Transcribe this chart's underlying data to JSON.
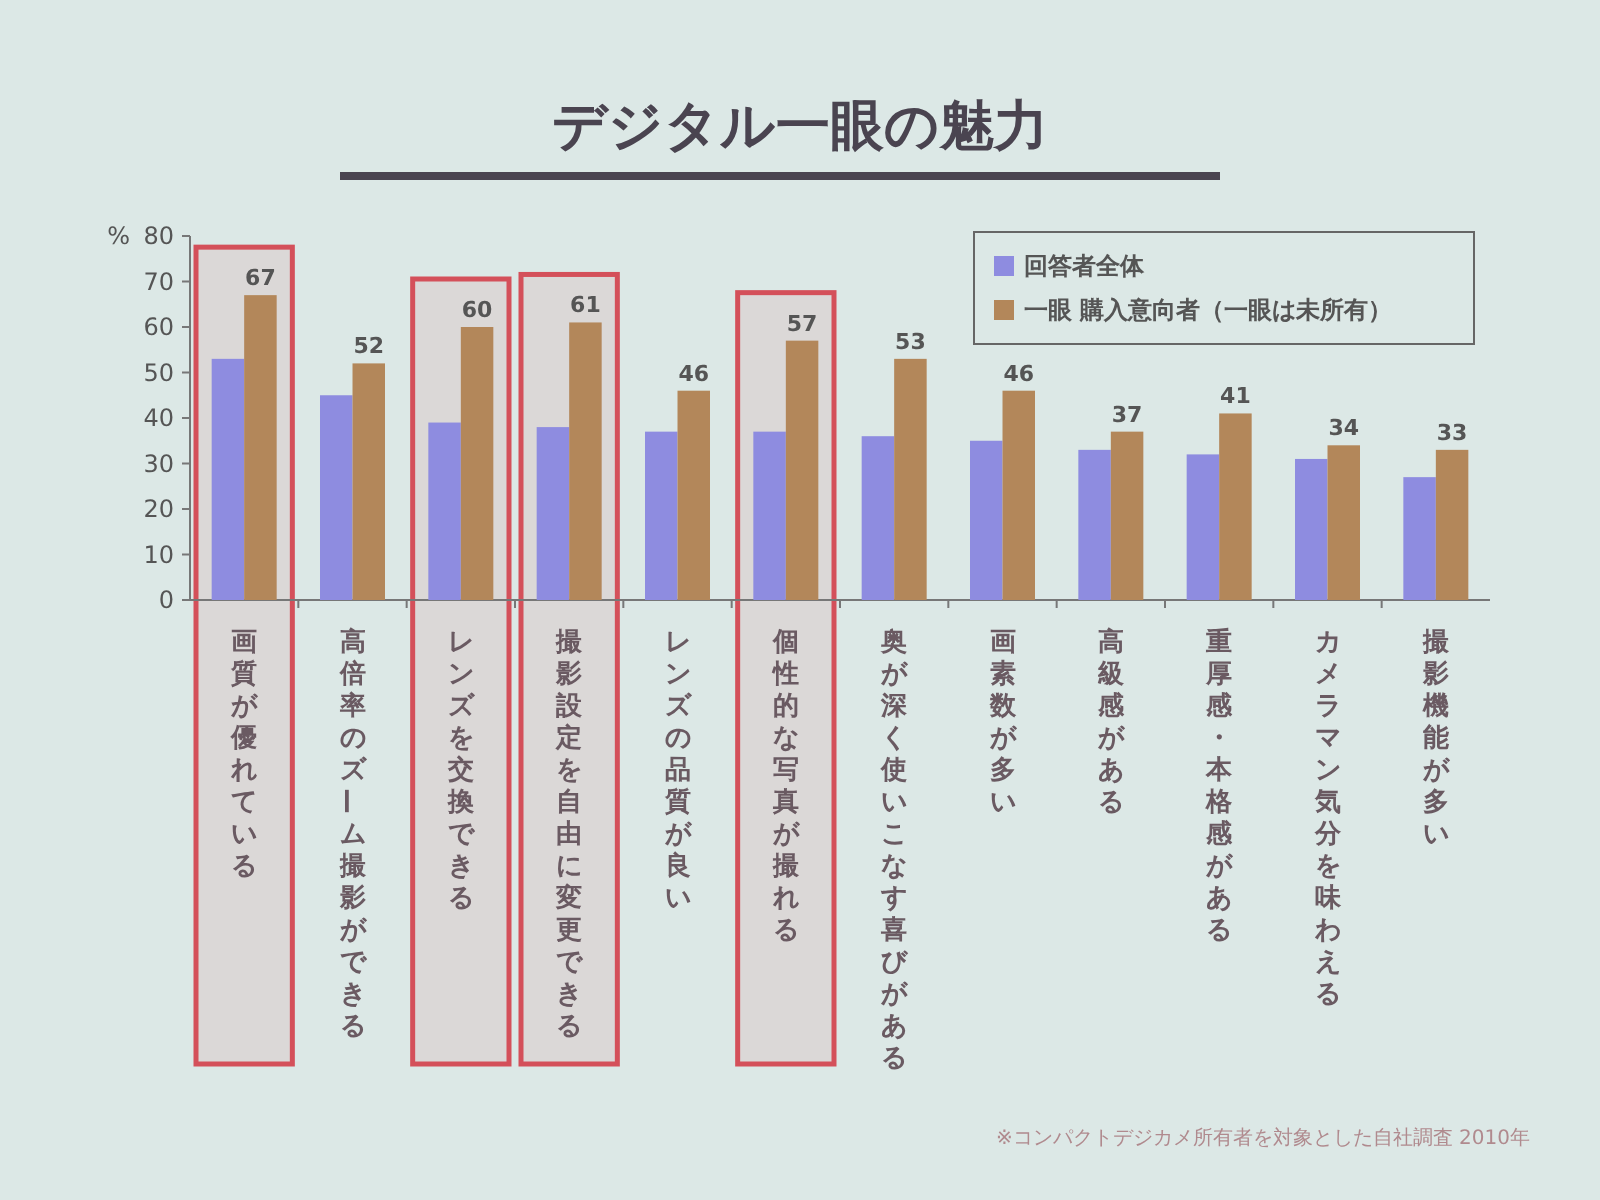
{
  "chart_data": {
    "type": "bar",
    "title": "デジタル一眼の魅力",
    "ylabel": "%",
    "categories": [
      "画質が優れている",
      "高倍率のズーム撮影ができる",
      "レンズを交換できる",
      "撮影設定を自由に変更できる",
      "レンズの品質が良い",
      "個性的な写真が撮れる",
      "奥が深く使いこなす喜びがある",
      "画素数が多い",
      "高級感がある",
      "重厚感・本格感がある",
      "カメラマン気分を味わえる",
      "撮影機能が多い"
    ],
    "series": [
      {
        "name": "回答者全体",
        "color": "#8e8ce0",
        "values": [
          53,
          45,
          39,
          38,
          37,
          37,
          36,
          35,
          33,
          32,
          31,
          27
        ]
      },
      {
        "name": "一眼 購入意向者（一眼は未所有）",
        "color": "#b3875a",
        "values": [
          67,
          52,
          60,
          61,
          46,
          57,
          53,
          46,
          37,
          41,
          34,
          33
        ],
        "value_labels": [
          "67",
          "52",
          "60",
          "61",
          "46",
          "57",
          "53",
          "46",
          "37",
          "41",
          "34",
          "33"
        ]
      }
    ],
    "ylim": [
      0,
      80
    ],
    "yticks": [
      0,
      10,
      20,
      30,
      40,
      50,
      60,
      70,
      80
    ],
    "legend": "top right",
    "bands": [
      {
        "axis": "x",
        "from": "画質が優れている",
        "to": "画質が優れている",
        "color": "#d4505a"
      },
      {
        "axis": "x",
        "from": "レンズを交換できる",
        "to": "レンズを交換できる",
        "color": "#d4505a"
      },
      {
        "axis": "x",
        "from": "撮影設定を自由に変更できる",
        "to": "撮影設定を自由に変更できる",
        "color": "#d4505a"
      },
      {
        "axis": "x",
        "from": "個性的な写真が撮れる",
        "to": "個性的な写真が撮れる",
        "color": "#d4505a"
      }
    ],
    "annotations": [
      "※コンパクトデジカメ所有者を対象とした自社調査 2010年"
    ]
  }
}
